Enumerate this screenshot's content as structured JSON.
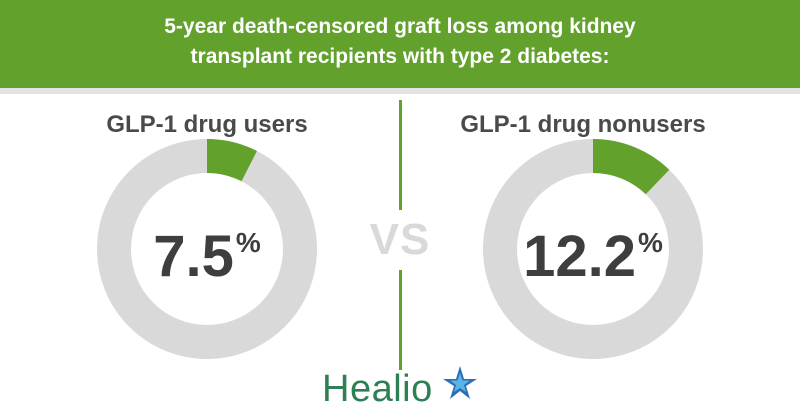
{
  "header": {
    "title_line1": "5-year death-censored graft loss among kidney",
    "title_line2": "transplant recipients with type 2 diabetes:"
  },
  "vs_label": "VS",
  "colors": {
    "banner": "#63a12d",
    "accent": "#63a12d",
    "ring": "#d9d9d9",
    "logo": "#2e7f55"
  },
  "chart_data": [
    {
      "type": "pie",
      "title": "GLP-1 drug users",
      "value": 7.5,
      "value_text": "7.5",
      "unit": "%",
      "max": 100
    },
    {
      "type": "pie",
      "title": "GLP-1 drug nonusers",
      "value": 12.2,
      "value_text": "12.2",
      "unit": "%",
      "max": 100
    }
  ],
  "logo": {
    "text": "Healio",
    "icon": "star-logo-icon"
  }
}
